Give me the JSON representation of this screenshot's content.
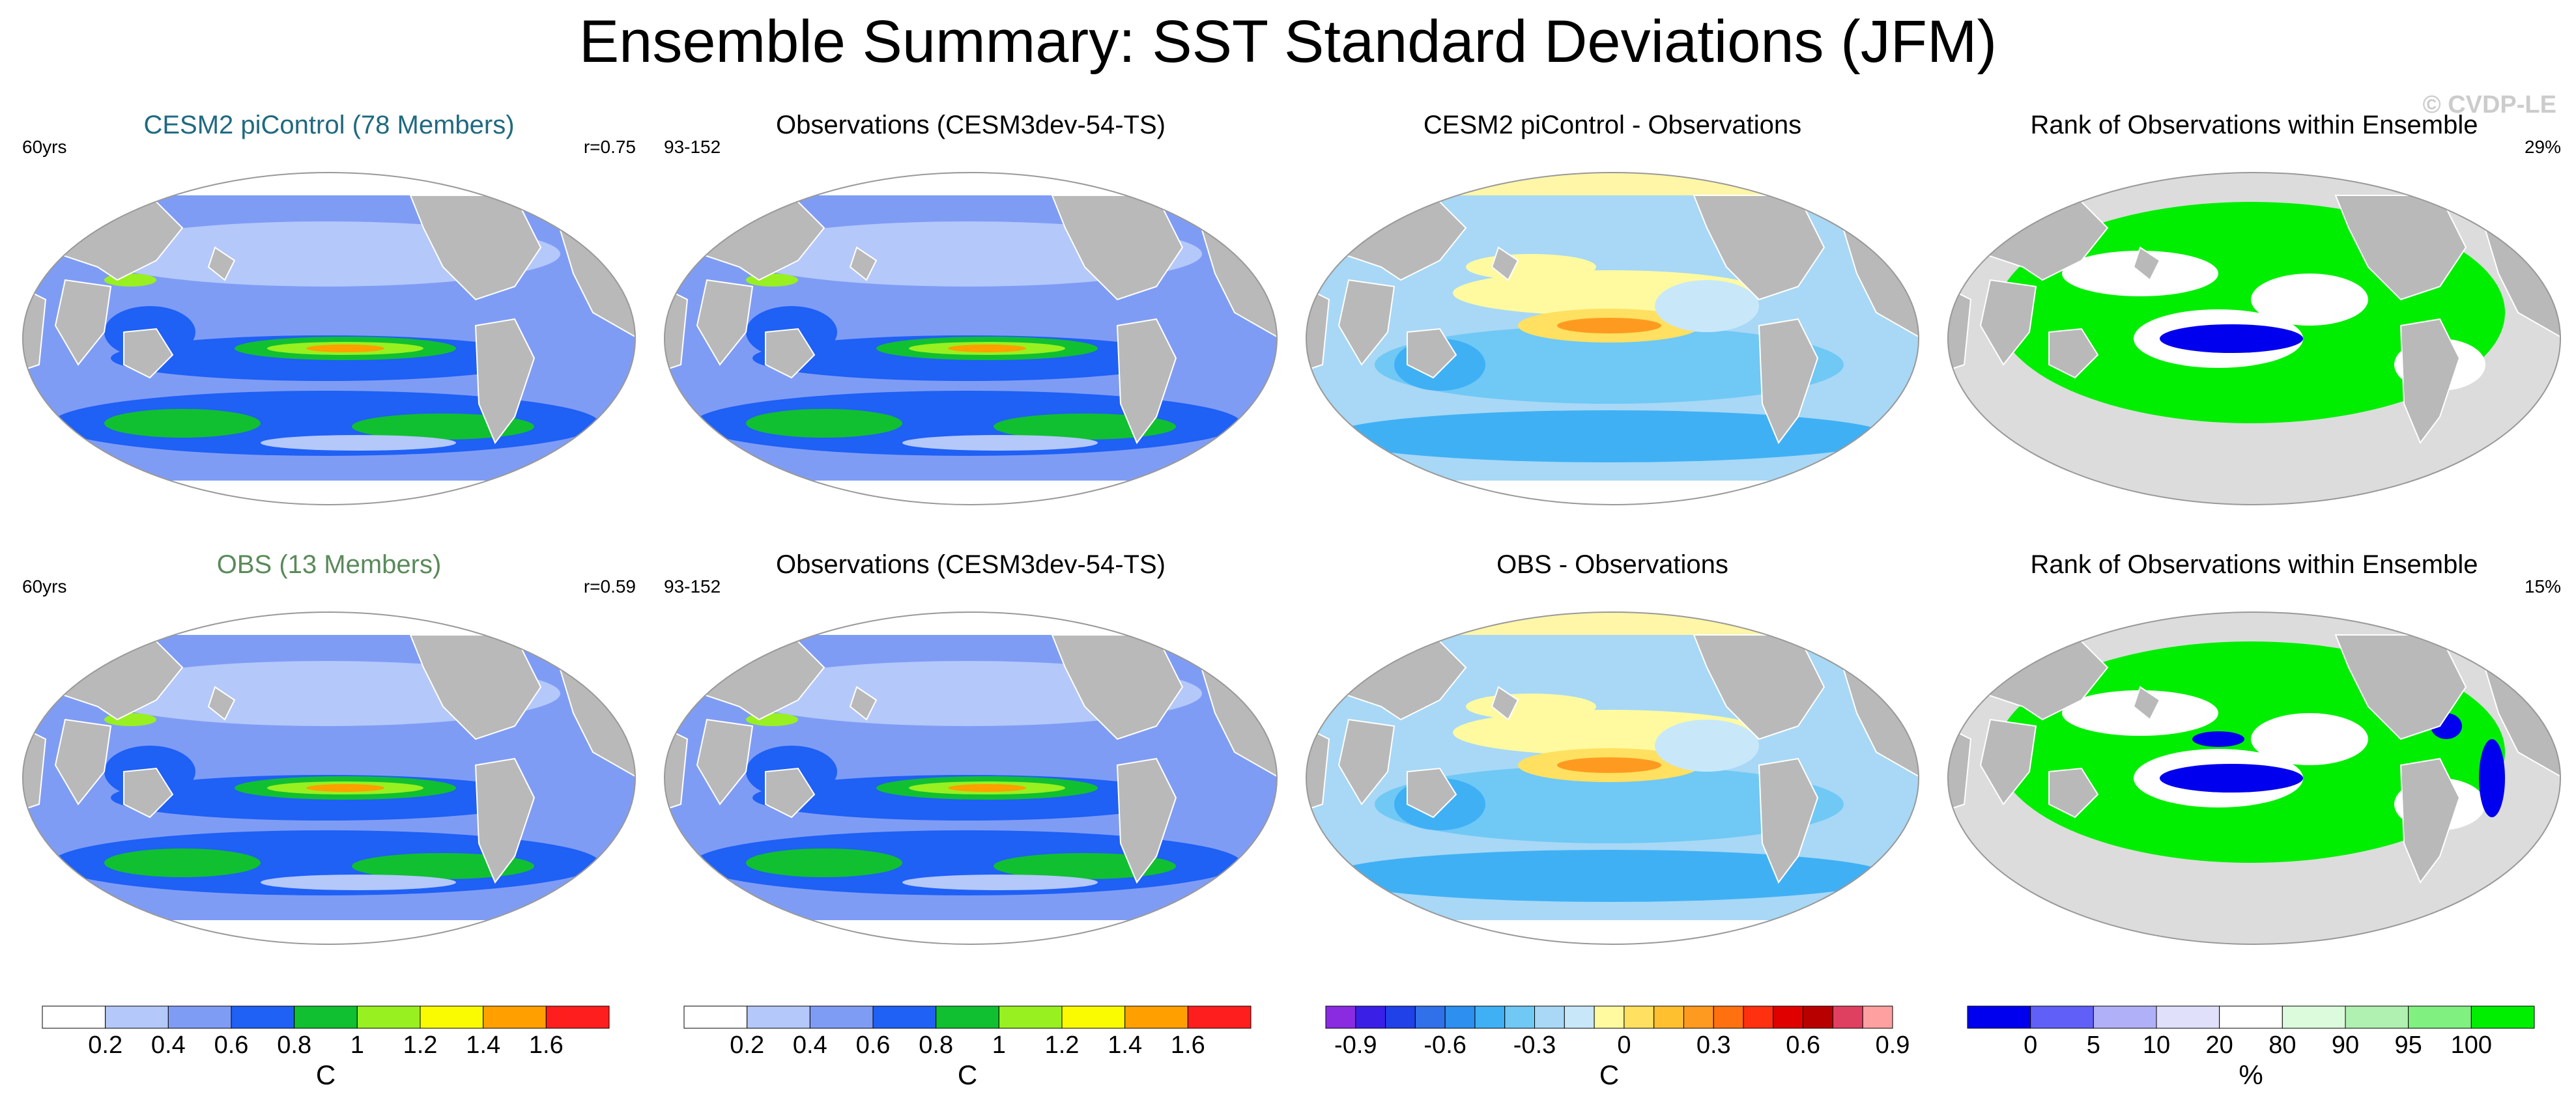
{
  "title": "Ensemble Summary: SST Standard Deviations (JFM)",
  "watermark": "© CVDP-LE",
  "colors": {
    "land": "#b9b9b9",
    "ocean_bg": "#7f9cf5",
    "rank_bg": "#dcdcdc",
    "std_scale": [
      "#ffffff",
      "#b4c8fa",
      "#7f9cf5",
      "#1f60f5",
      "#10c030",
      "#98f020",
      "#fafa00",
      "#ffa000",
      "#ff1e1e"
    ],
    "diff_scale": [
      "#8a2be2",
      "#3a1fe6",
      "#2040e8",
      "#3070e8",
      "#2d8ff0",
      "#40b0f5",
      "#70c8f5",
      "#a8d8f5",
      "#c8e8fa",
      "#fffaa0",
      "#ffe060",
      "#ffc030",
      "#ff9a20",
      "#ff7010",
      "#ff3010",
      "#e00000",
      "#b80000",
      "#e04060",
      "#ffa0a0"
    ],
    "rank_scale": [
      "#0000ee",
      "#6060f8",
      "#b0b0f8",
      "#e0e0fa",
      "#ffffff",
      "#dcfadc",
      "#b0f0b0",
      "#80f080",
      "#00ee00"
    ]
  },
  "panels": [
    {
      "title": "CESM2 piControl (78 Members)",
      "title_color": "#206a80",
      "left": "60yrs",
      "right": "r=0.75",
      "kind": "std"
    },
    {
      "title": "Observations (CESM3dev-54-TS)",
      "title_color": "#000000",
      "left": "93-152",
      "right": "",
      "kind": "std"
    },
    {
      "title": "CESM2 piControl - Observations",
      "title_color": "#000000",
      "left": "",
      "right": "",
      "kind": "diff"
    },
    {
      "title": "Rank of Observations within Ensemble",
      "title_color": "#000000",
      "left": "",
      "right": "29%",
      "kind": "rank"
    },
    {
      "title": "OBS (13 Members)",
      "title_color": "#5a8a5a",
      "left": "60yrs",
      "right": "r=0.59",
      "kind": "std"
    },
    {
      "title": "Observations (CESM3dev-54-TS)",
      "title_color": "#000000",
      "left": "93-152",
      "right": "",
      "kind": "std"
    },
    {
      "title": "OBS - Observations",
      "title_color": "#000000",
      "left": "",
      "right": "",
      "kind": "diff"
    },
    {
      "title": "Rank of Observations within Ensemble",
      "title_color": "#000000",
      "left": "",
      "right": "15%",
      "kind": "rank"
    }
  ],
  "colorbars": [
    {
      "unit": "C",
      "ticks": [
        "0.2",
        "0.4",
        "0.6",
        "0.8",
        "1",
        "1.2",
        "1.4",
        "1.6"
      ],
      "kind": "std"
    },
    {
      "unit": "C",
      "ticks": [
        "0.2",
        "0.4",
        "0.6",
        "0.8",
        "1",
        "1.2",
        "1.4",
        "1.6"
      ],
      "kind": "std"
    },
    {
      "unit": "C",
      "ticks": [
        "-0.9",
        "-0.6",
        "-0.3",
        "0",
        "0.3",
        "0.6",
        "0.9"
      ],
      "kind": "diff"
    },
    {
      "unit": "%",
      "ticks": [
        "0",
        "5",
        "10",
        "20",
        "80",
        "90",
        "95",
        "100"
      ],
      "kind": "rank"
    }
  ]
}
